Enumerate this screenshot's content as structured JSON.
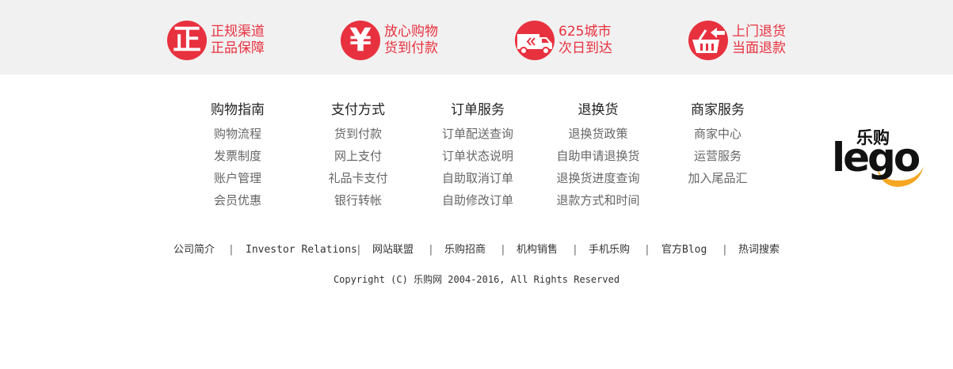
{
  "guarantees": [
    {
      "icon": "authentic-icon",
      "line1": "正规渠道",
      "line2": "正品保障"
    },
    {
      "icon": "yuan-icon",
      "line1": "放心购物",
      "line2": "货到付款"
    },
    {
      "icon": "delivery-truck-icon",
      "line1": "625城市",
      "line2": "次日到达"
    },
    {
      "icon": "return-basket-icon",
      "line1": "上门退货",
      "line2": "当面退款"
    }
  ],
  "badge_glyphs": {
    "authentic": "正",
    "yuan": "¥"
  },
  "columns": [
    {
      "title": "购物指南",
      "links": [
        "购物流程",
        "发票制度",
        "账户管理",
        "会员优惠"
      ]
    },
    {
      "title": "支付方式",
      "links": [
        "货到付款",
        "网上支付",
        "礼品卡支付",
        "银行转帐"
      ]
    },
    {
      "title": "订单服务",
      "links": [
        "订单配送查询",
        "订单状态说明",
        "自助取消订单",
        "自助修改订单"
      ]
    },
    {
      "title": "退换货",
      "links": [
        "退换货政策",
        "自助申请退换货",
        "退换货进度查询",
        "退款方式和时间"
      ]
    },
    {
      "title": "商家服务",
      "links": [
        "商家中心",
        "运营服务",
        "加入尾品汇"
      ]
    }
  ],
  "logo": {
    "cn": "乐购",
    "en": "lego"
  },
  "footer_links": [
    "公司简介",
    "Investor Relations",
    "网站联盟",
    "乐购招商",
    "机构销售",
    "手机乐购",
    "官方Blog",
    "热词搜索"
  ],
  "separator": "|",
  "copyright": "Copyright (C) 乐购网 2004-2016, All Rights Reserved",
  "colors": {
    "accent_red": "#e8313f",
    "logo_orange": "#f5a623",
    "band_bg": "#f1f1f1"
  }
}
